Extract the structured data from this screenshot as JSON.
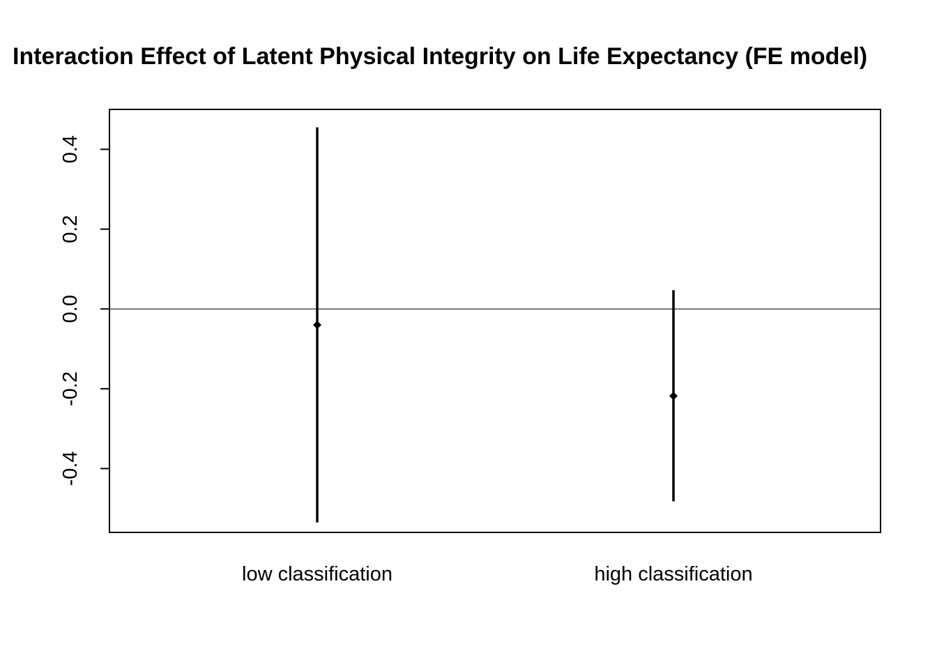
{
  "chart_data": {
    "type": "scatter",
    "title": "Interaction Effect of Latent Physical Integrity on Life Expectancy (FE model)",
    "xlabel": "",
    "ylabel": "",
    "categories": [
      "low classification",
      "high classification"
    ],
    "series": [
      {
        "estimates": [
          -0.04,
          -0.218
        ],
        "lower": [
          -0.535,
          -0.482
        ],
        "upper": [
          0.455,
          0.047
        ]
      }
    ],
    "ylim": [
      -0.56,
      0.5
    ],
    "yticks": [
      "0.4",
      "0.2",
      "0.0",
      "-0.2",
      "-0.4"
    ],
    "ytick_values": [
      0.4,
      0.2,
      0.0,
      -0.2,
      -0.4
    ],
    "reference_line": 0,
    "grid": false,
    "legend": "none",
    "color": "#000000"
  }
}
